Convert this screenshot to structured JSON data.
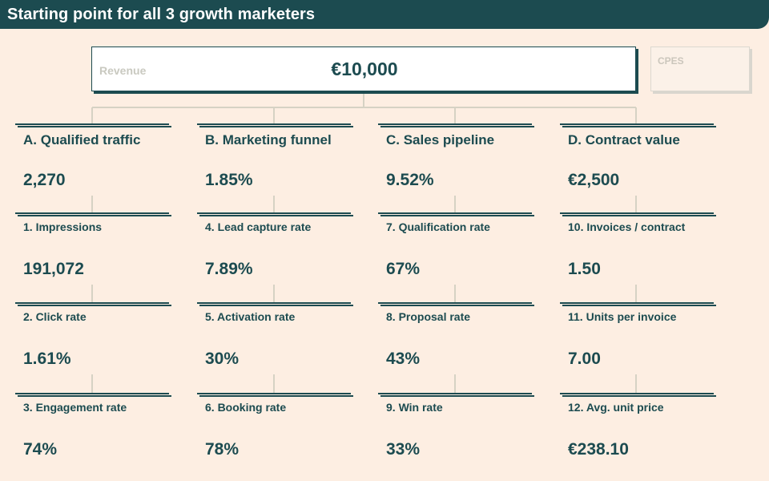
{
  "header": {
    "title": "Starting point for all 3 growth marketers"
  },
  "revenue": {
    "label": "Revenue",
    "value": "€10,000"
  },
  "cpes": {
    "label": "CPES"
  },
  "columns": [
    {
      "color": "#f4e0fb",
      "top": {
        "label": "A. Qualified traffic",
        "value": "2,270"
      },
      "items": [
        {
          "label": "1. Impressions",
          "value": "191,072"
        },
        {
          "label": "2. Click rate",
          "value": "1.61%"
        },
        {
          "label": "3. Engagement rate",
          "value": "74%"
        }
      ]
    },
    {
      "color": "#effcef",
      "top": {
        "label": "B. Marketing funnel",
        "value": "1.85%"
      },
      "items": [
        {
          "label": "4. Lead capture rate",
          "value": "7.89%"
        },
        {
          "label": "5. Activation rate",
          "value": "30%"
        },
        {
          "label": "6. Booking rate",
          "value": "78%"
        }
      ]
    },
    {
      "color": "#fdf3d6",
      "top": {
        "label": "C. Sales pipeline",
        "value": "9.52%"
      },
      "items": [
        {
          "label": "7. Qualification rate",
          "value": "67%"
        },
        {
          "label": "8. Proposal rate",
          "value": "43%"
        },
        {
          "label": "9. Win rate",
          "value": "33%"
        }
      ]
    },
    {
      "color": "#deedf9",
      "top": {
        "label": "D. Contract value",
        "value": "€2,500"
      },
      "items": [
        {
          "label": "10. Invoices / contract",
          "value": "1.50"
        },
        {
          "label": "11. Units per invoice",
          "value": "7.00"
        },
        {
          "label": "12. Avg. unit price",
          "value": "€238.10"
        }
      ]
    }
  ]
}
